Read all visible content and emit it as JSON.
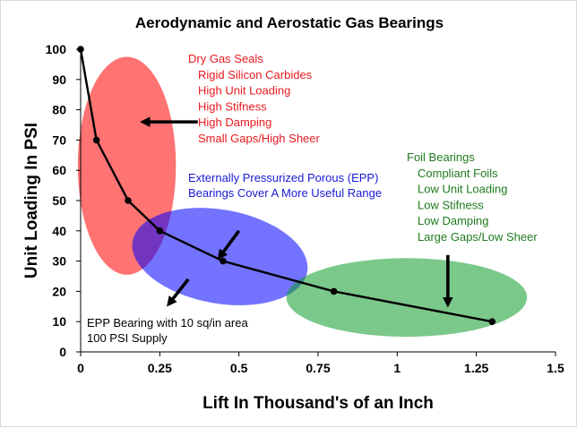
{
  "chart_data": {
    "type": "line",
    "title": "Aerodynamic and Aerostatic Gas Bearings",
    "xlabel": "Lift In Thousand's of an Inch",
    "ylabel": "Unit Loading In PSI",
    "xlim": [
      0,
      1.5
    ],
    "ylim": [
      0,
      100
    ],
    "x_ticks": [
      "0",
      "0.25",
      "0.5",
      "0.75",
      "1",
      "1.25",
      "1.5"
    ],
    "y_ticks": [
      "0",
      "10",
      "20",
      "30",
      "40",
      "50",
      "60",
      "70",
      "80",
      "90",
      "100"
    ],
    "grid": false,
    "series": [
      {
        "x": [
          0,
          0.05,
          0.15,
          0.25,
          0.45,
          0.8,
          1.3
        ],
        "y": [
          100,
          70,
          50,
          40,
          30,
          20,
          10
        ],
        "color": "#000000"
      }
    ],
    "regions": [
      {
        "cx": 0.146,
        "cy": 61.5,
        "rx": 0.155,
        "ry": 36,
        "color": "#ff0000",
        "opacity": 0.55
      },
      {
        "cx": 0.44,
        "cy": 31.5,
        "rx": 0.28,
        "ry": 15.5,
        "rotation": 10,
        "color": "#0000ff",
        "opacity": 0.55
      },
      {
        "cx": 1.03,
        "cy": 18,
        "rx": 0.38,
        "ry": 13,
        "color": "#0f9a2c",
        "opacity": 0.55
      }
    ],
    "annotations": {
      "dry_gas": {
        "color": "#e8191e",
        "lines": [
          "Dry Gas Seals",
          "Rigid Silicon Carbides",
          "High Unit Loading",
          "High Stifness",
          "High Damping",
          "Small Gaps/High Sheer"
        ]
      },
      "epp": {
        "color": "#1a1ad6",
        "lines": [
          "Externally Pressurized Porous (EPP)",
          "Bearings Cover A More Useful Range"
        ]
      },
      "foil": {
        "color": "#1f7a1f",
        "lines": [
          "Foil Bearings",
          "Compliant Foils",
          "Low Unit Loading",
          "Low Stifness",
          "Low Damping",
          "Large Gaps/Low Sheer"
        ]
      },
      "epp_note": {
        "color": "#000000",
        "lines": [
          "EPP Bearing with 10 sq/in area",
          "100 PSI Supply"
        ]
      }
    },
    "arrows": [
      {
        "from": [
          0.37,
          76
        ],
        "to": [
          0.2,
          76
        ]
      },
      {
        "from": [
          0.5,
          40
        ],
        "to": [
          0.44,
          31.5
        ]
      },
      {
        "from": [
          0.34,
          24
        ],
        "to": [
          0.28,
          16
        ]
      },
      {
        "from": [
          1.16,
          32
        ],
        "to": [
          1.16,
          16
        ]
      }
    ]
  }
}
